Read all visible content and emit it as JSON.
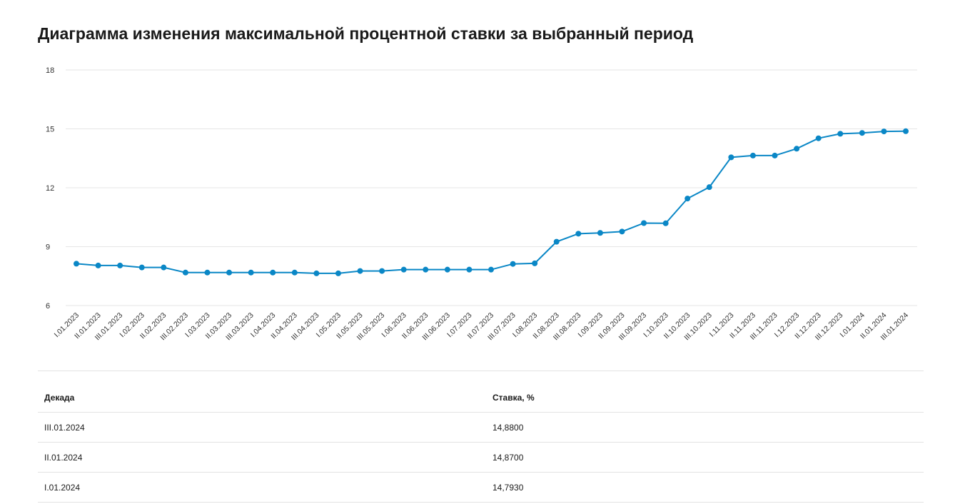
{
  "title": "Диаграмма изменения максимальной процентной ставки за выбранный период",
  "chart_data": {
    "type": "line",
    "title": "",
    "xlabel": "",
    "ylabel": "",
    "ylim": [
      6,
      18
    ],
    "yticks": [
      "6",
      "9",
      "12",
      "15",
      "18"
    ],
    "grid": true,
    "legend": "none",
    "color": "#0a87c6",
    "categories": [
      "I.01.2023",
      "II.01.2023",
      "III.01.2023",
      "I.02.2023",
      "II.02.2023",
      "III.02.2023",
      "I.03.2023",
      "II.03.2023",
      "III.03.2023",
      "I.04.2023",
      "II.04.2023",
      "III.04.2023",
      "I.05.2023",
      "II.05.2023",
      "III.05.2023",
      "I.06.2023",
      "II.06.2023",
      "III.06.2023",
      "I.07.2023",
      "II.07.2023",
      "III.07.2023",
      "I.08.2023",
      "II.08.2023",
      "III.08.2023",
      "I.09.2023",
      "II.09.2023",
      "III.09.2023",
      "I.10.2023",
      "II.10.2023",
      "III.10.2023",
      "I.11.2023",
      "II.11.2023",
      "III.11.2023",
      "I.12.2023",
      "II.12.2023",
      "III.12.2023",
      "I.01.2024",
      "II.01.2024",
      "III.01.2024"
    ],
    "series": [
      {
        "values": [
          8.13,
          8.04,
          8.04,
          7.94,
          7.94,
          7.68,
          7.68,
          7.68,
          7.68,
          7.68,
          7.68,
          7.64,
          7.64,
          7.76,
          7.76,
          7.83,
          7.83,
          7.83,
          7.83,
          7.83,
          8.12,
          8.15,
          9.25,
          9.66,
          9.7,
          9.77,
          10.2,
          10.19,
          11.45,
          12.03,
          13.55,
          13.64,
          13.64,
          13.99,
          14.52,
          14.75,
          14.793,
          14.87,
          14.88
        ]
      }
    ]
  },
  "table": {
    "headers": [
      "Декада",
      "Ставка, %"
    ],
    "rows": [
      [
        "III.01.2024",
        "14,8800"
      ],
      [
        "II.01.2024",
        "14,8700"
      ],
      [
        "I.01.2024",
        "14,7930"
      ]
    ]
  }
}
